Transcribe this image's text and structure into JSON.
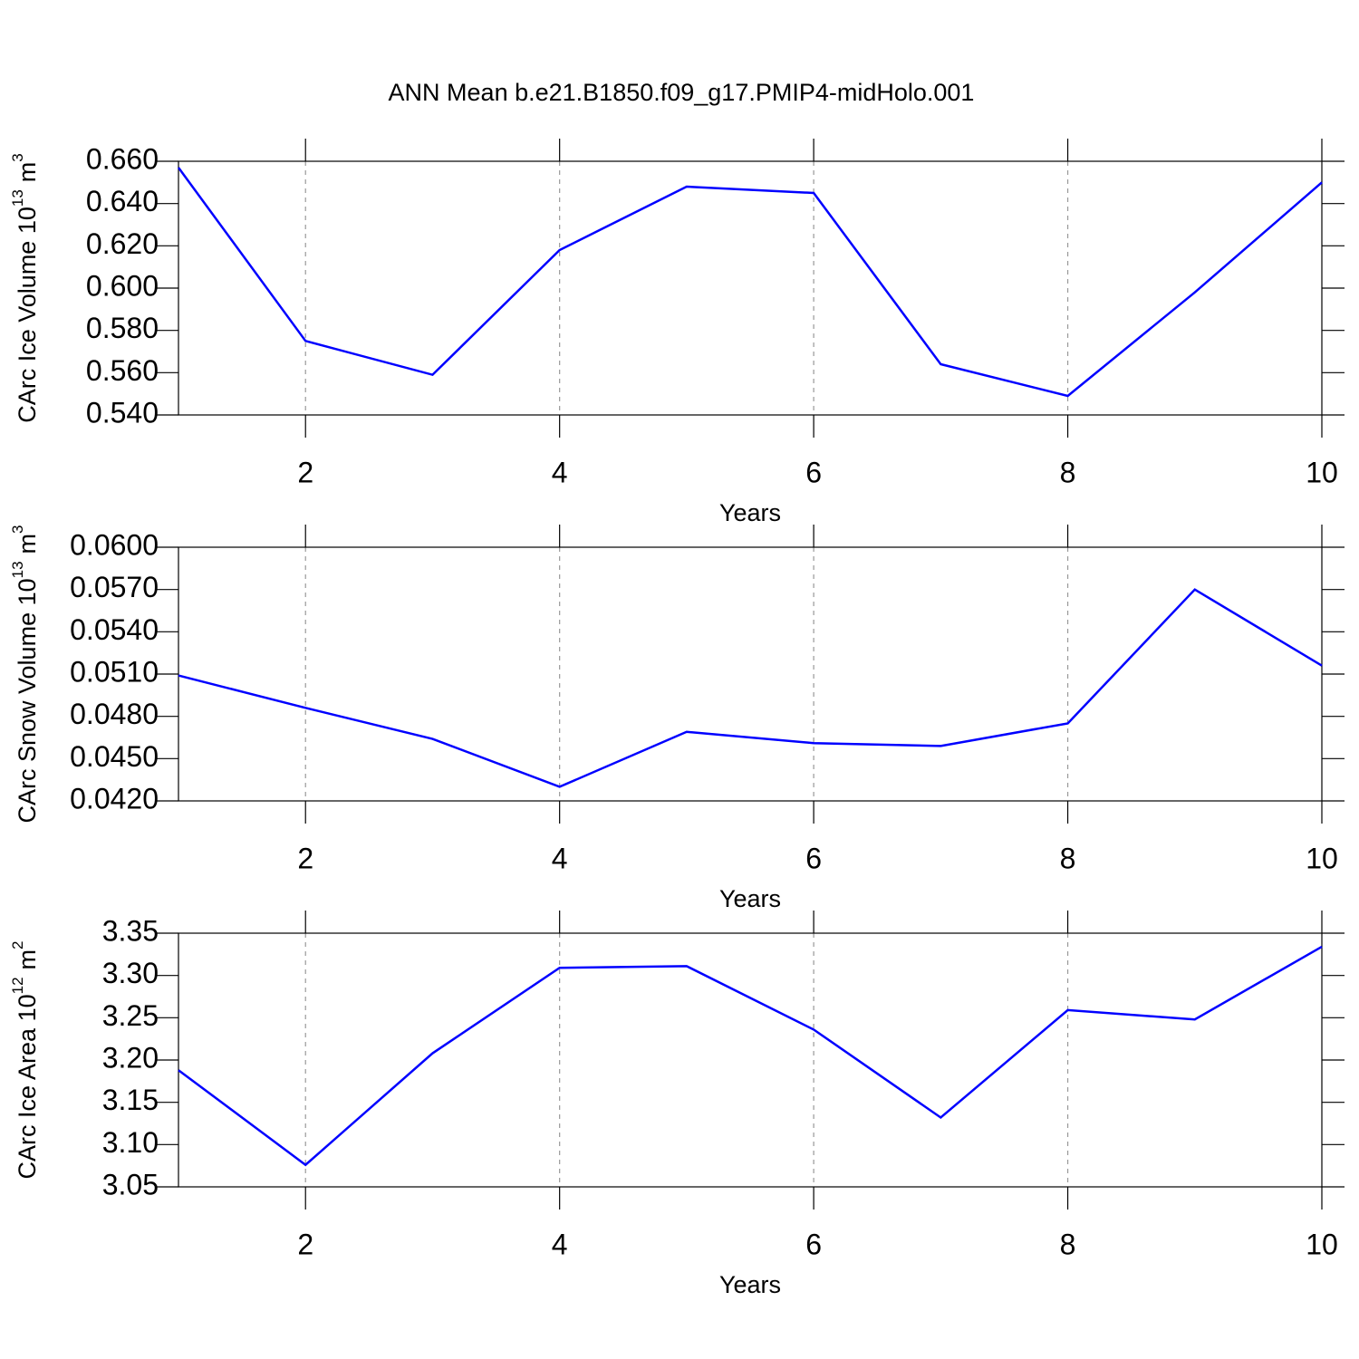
{
  "title": "ANN Mean b.e21.B1850.f09_g17.PMIP4-midHolo.001",
  "chart_data": [
    {
      "type": "line",
      "ylabel": [
        "CArc Ice Volume 10",
        "13",
        "m",
        "3"
      ],
      "xlabel": "Years",
      "x": [
        1,
        2,
        3,
        4,
        5,
        6,
        7,
        8,
        9,
        10
      ],
      "series": [
        {
          "color": "#0000ff",
          "values": [
            0.657,
            0.575,
            0.559,
            0.618,
            0.648,
            0.645,
            0.564,
            0.549,
            0.598,
            0.65
          ]
        }
      ],
      "xlim": [
        1,
        10
      ],
      "xticks": [
        2,
        4,
        6,
        8,
        10
      ],
      "ylim": [
        0.54,
        0.66
      ],
      "yticks": [
        {
          "value": 0.54,
          "label": "0.540"
        },
        {
          "value": 0.56,
          "label": "0.560"
        },
        {
          "value": 0.58,
          "label": "0.580"
        },
        {
          "value": 0.6,
          "label": "0.600"
        },
        {
          "value": 0.62,
          "label": "0.620"
        },
        {
          "value": 0.64,
          "label": "0.640"
        },
        {
          "value": 0.66,
          "label": "0.660"
        }
      ],
      "grid": "x"
    },
    {
      "type": "line",
      "ylabel": [
        "CArc Snow Volume 10",
        "13",
        "m",
        "3"
      ],
      "xlabel": "Years",
      "x": [
        1,
        2,
        3,
        4,
        5,
        6,
        7,
        8,
        9,
        10
      ],
      "series": [
        {
          "color": "#0000ff",
          "values": [
            0.0509,
            0.0486,
            0.0464,
            0.043,
            0.0469,
            0.0461,
            0.0459,
            0.0475,
            0.057,
            0.0516
          ]
        }
      ],
      "xlim": [
        1,
        10
      ],
      "xticks": [
        2,
        4,
        6,
        8,
        10
      ],
      "ylim": [
        0.042,
        0.06
      ],
      "yticks": [
        {
          "value": 0.042,
          "label": "0.0420"
        },
        {
          "value": 0.045,
          "label": "0.0450"
        },
        {
          "value": 0.048,
          "label": "0.0480"
        },
        {
          "value": 0.051,
          "label": "0.0510"
        },
        {
          "value": 0.054,
          "label": "0.0540"
        },
        {
          "value": 0.057,
          "label": "0.0570"
        },
        {
          "value": 0.06,
          "label": "0.0600"
        }
      ],
      "grid": "x"
    },
    {
      "type": "line",
      "ylabel": [
        "CArc Ice Area 10",
        "12",
        "m",
        "2"
      ],
      "xlabel": "Years",
      "x": [
        1,
        2,
        3,
        4,
        5,
        6,
        7,
        8,
        9,
        10
      ],
      "series": [
        {
          "color": "#0000ff",
          "values": [
            3.188,
            3.076,
            3.208,
            3.309,
            3.311,
            3.236,
            3.132,
            3.259,
            3.248,
            3.334
          ]
        }
      ],
      "xlim": [
        1,
        10
      ],
      "xticks": [
        2,
        4,
        6,
        8,
        10
      ],
      "ylim": [
        3.05,
        3.35
      ],
      "yticks": [
        3.05,
        {
          "value": 3.1,
          "label": "3.10"
        },
        3.15,
        {
          "value": 3.2,
          "label": "3.20"
        },
        3.25,
        {
          "value": 3.3,
          "label": "3.30"
        },
        3.35
      ],
      "grid": "x"
    }
  ]
}
